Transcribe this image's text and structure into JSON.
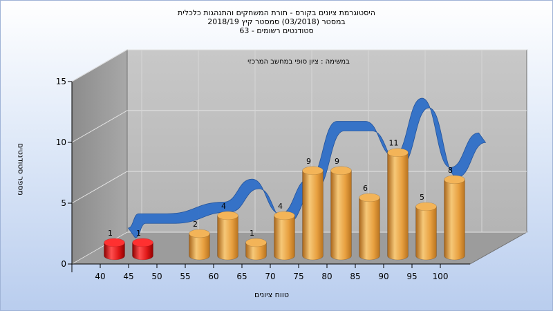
{
  "chart_data": {
    "type": "bar",
    "title_lines": [
      "היסטוגרמת ציונים בקורס - תורת המשחקים והתנהגות כלכלית",
      "במסטר  (03/2018)  סמסטר קיץ 2018/19",
      "סטודנטים רשומים - 63"
    ],
    "subtitle": "במשימה : ציון סופי במחשב המרכזי",
    "xlabel": "טווח ציונים",
    "ylabel": "מספר סטודנטים",
    "y_ticks": [
      0,
      5,
      10,
      15
    ],
    "ylim": [
      0,
      15
    ],
    "x_ticks": [
      "40",
      "45",
      "50",
      "55",
      "60",
      "65",
      "70",
      "75",
      "80",
      "85",
      "90",
      "95",
      "100"
    ],
    "bars": [
      {
        "x": 42.5,
        "value": 1,
        "color": "red"
      },
      {
        "x": 47.5,
        "value": 1,
        "color": "red"
      },
      {
        "x": 57.5,
        "value": 2,
        "color": "orange"
      },
      {
        "x": 62.5,
        "value": 4,
        "color": "orange"
      },
      {
        "x": 67.5,
        "value": 1,
        "color": "orange"
      },
      {
        "x": 72.5,
        "value": 4,
        "color": "orange"
      },
      {
        "x": 77.5,
        "value": 9,
        "color": "orange"
      },
      {
        "x": 82.5,
        "value": 9,
        "color": "orange"
      },
      {
        "x": 87.5,
        "value": 6,
        "color": "orange"
      },
      {
        "x": 92.5,
        "value": 11,
        "color": "orange"
      },
      {
        "x": 97.5,
        "value": 5,
        "color": "orange"
      },
      {
        "x": 102.5,
        "value": 8,
        "color": "orange"
      }
    ],
    "grid": true,
    "colors": {
      "fail": "#e01818",
      "pass": "#e8a040",
      "curve": "#2f6fc8"
    }
  }
}
